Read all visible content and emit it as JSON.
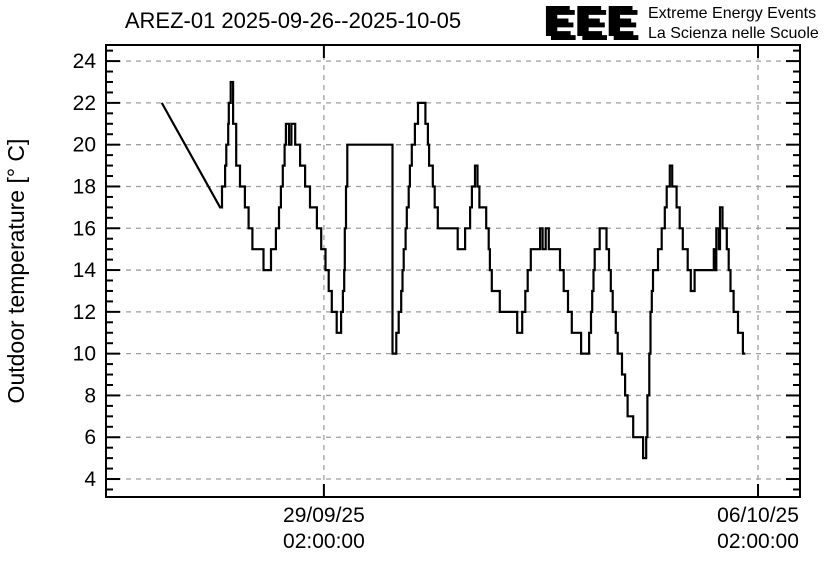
{
  "header": {
    "title": "AREZ-01 2025-09-26--2025-10-05"
  },
  "logo": {
    "acronym": "EEE",
    "line1": "Extreme Energy Events",
    "line2": "La Scienza nelle Scuole",
    "blue": "#2222dd",
    "shadow_gray": "#b9b9b9"
  },
  "chart_data": {
    "type": "line",
    "title": "AREZ-01 2025-09-26--2025-10-05",
    "ylabel": "Outdoor temperature [° C]",
    "xlabel": "",
    "x_unit": "days since 2025-09-26 00:00",
    "xlim": [
      -0.43,
      10.76
    ],
    "ylim": [
      3.14,
      24.77
    ],
    "grid": {
      "show": true,
      "style": "dashed",
      "color": "#9e9e9e"
    },
    "line_color": "#000000",
    "y_ticks": [
      4,
      6,
      8,
      10,
      12,
      14,
      16,
      18,
      20,
      22,
      24
    ],
    "y_minor_step": 0.5,
    "x_ticks": [
      {
        "t": 3.0833,
        "label": [
          "29/09/25",
          "02:00:00"
        ]
      },
      {
        "t": 10.0833,
        "label": [
          "06/10/25",
          "02:00:00"
        ]
      }
    ],
    "series": [
      {
        "name": "outdoor-temperature",
        "color": "#000000",
        "note": "first segment is a straight line across a data gap; remaining points rendered step-after; t in days since 2025-09-26 00:00, temp in °C",
        "points": [
          [
            0.47,
            22
          ],
          [
            1.41,
            17
          ],
          [
            1.44,
            18
          ],
          [
            1.49,
            19
          ],
          [
            1.51,
            20
          ],
          [
            1.54,
            21
          ],
          [
            1.55,
            22
          ],
          [
            1.58,
            23
          ],
          [
            1.62,
            21
          ],
          [
            1.67,
            19
          ],
          [
            1.73,
            18
          ],
          [
            1.81,
            17
          ],
          [
            1.87,
            16
          ],
          [
            1.93,
            15
          ],
          [
            2.11,
            14
          ],
          [
            2.23,
            15
          ],
          [
            2.31,
            16
          ],
          [
            2.36,
            17
          ],
          [
            2.39,
            18
          ],
          [
            2.42,
            19
          ],
          [
            2.45,
            20
          ],
          [
            2.47,
            21
          ],
          [
            2.52,
            20
          ],
          [
            2.56,
            21
          ],
          [
            2.62,
            20
          ],
          [
            2.7,
            19
          ],
          [
            2.78,
            18
          ],
          [
            2.86,
            17
          ],
          [
            2.97,
            16
          ],
          [
            3.04,
            15
          ],
          [
            3.11,
            14
          ],
          [
            3.16,
            13
          ],
          [
            3.21,
            12
          ],
          [
            3.29,
            11
          ],
          [
            3.36,
            12
          ],
          [
            3.39,
            13
          ],
          [
            3.41,
            14
          ],
          [
            3.42,
            16
          ],
          [
            3.44,
            18
          ],
          [
            3.46,
            20
          ],
          [
            4.19,
            10
          ],
          [
            4.25,
            11
          ],
          [
            4.29,
            12
          ],
          [
            4.33,
            13
          ],
          [
            4.35,
            14
          ],
          [
            4.37,
            15
          ],
          [
            4.4,
            16
          ],
          [
            4.42,
            17
          ],
          [
            4.45,
            18
          ],
          [
            4.47,
            19
          ],
          [
            4.5,
            20
          ],
          [
            4.55,
            21
          ],
          [
            4.6,
            22
          ],
          [
            4.72,
            21
          ],
          [
            4.76,
            20
          ],
          [
            4.78,
            19
          ],
          [
            4.84,
            18
          ],
          [
            4.87,
            17
          ],
          [
            4.92,
            16
          ],
          [
            5.24,
            15
          ],
          [
            5.36,
            16
          ],
          [
            5.44,
            17
          ],
          [
            5.47,
            18
          ],
          [
            5.52,
            19
          ],
          [
            5.56,
            18
          ],
          [
            5.59,
            17
          ],
          [
            5.7,
            16
          ],
          [
            5.74,
            15
          ],
          [
            5.76,
            14
          ],
          [
            5.79,
            13
          ],
          [
            5.92,
            12
          ],
          [
            6.2,
            11
          ],
          [
            6.28,
            12
          ],
          [
            6.33,
            13
          ],
          [
            6.37,
            14
          ],
          [
            6.42,
            15
          ],
          [
            6.57,
            16
          ],
          [
            6.61,
            15
          ],
          [
            6.66,
            16
          ],
          [
            6.71,
            15
          ],
          [
            6.89,
            14
          ],
          [
            6.95,
            13
          ],
          [
            7.02,
            12
          ],
          [
            7.08,
            11
          ],
          [
            7.23,
            10
          ],
          [
            7.36,
            11
          ],
          [
            7.39,
            12
          ],
          [
            7.41,
            13
          ],
          [
            7.43,
            14
          ],
          [
            7.45,
            15
          ],
          [
            7.53,
            16
          ],
          [
            7.64,
            15
          ],
          [
            7.68,
            14
          ],
          [
            7.71,
            13
          ],
          [
            7.74,
            12
          ],
          [
            7.79,
            11
          ],
          [
            7.82,
            10
          ],
          [
            7.89,
            9
          ],
          [
            7.94,
            8
          ],
          [
            7.98,
            7
          ],
          [
            8.07,
            6
          ],
          [
            8.23,
            5
          ],
          [
            8.28,
            6
          ],
          [
            8.3,
            8
          ],
          [
            8.33,
            10
          ],
          [
            8.35,
            12
          ],
          [
            8.37,
            13
          ],
          [
            8.39,
            14
          ],
          [
            8.47,
            15
          ],
          [
            8.53,
            16
          ],
          [
            8.58,
            17
          ],
          [
            8.61,
            18
          ],
          [
            8.66,
            19
          ],
          [
            8.7,
            18
          ],
          [
            8.77,
            17
          ],
          [
            8.82,
            16
          ],
          [
            8.87,
            15
          ],
          [
            8.95,
            14
          ],
          [
            9.0,
            13
          ],
          [
            9.06,
            14
          ],
          [
            9.37,
            15
          ],
          [
            9.39,
            14
          ],
          [
            9.41,
            16
          ],
          [
            9.45,
            15
          ],
          [
            9.47,
            17
          ],
          [
            9.51,
            16
          ],
          [
            9.58,
            15
          ],
          [
            9.61,
            14
          ],
          [
            9.64,
            13
          ],
          [
            9.69,
            12
          ],
          [
            9.76,
            11
          ],
          [
            9.84,
            10
          ],
          [
            9.88,
            10
          ]
        ]
      }
    ]
  }
}
